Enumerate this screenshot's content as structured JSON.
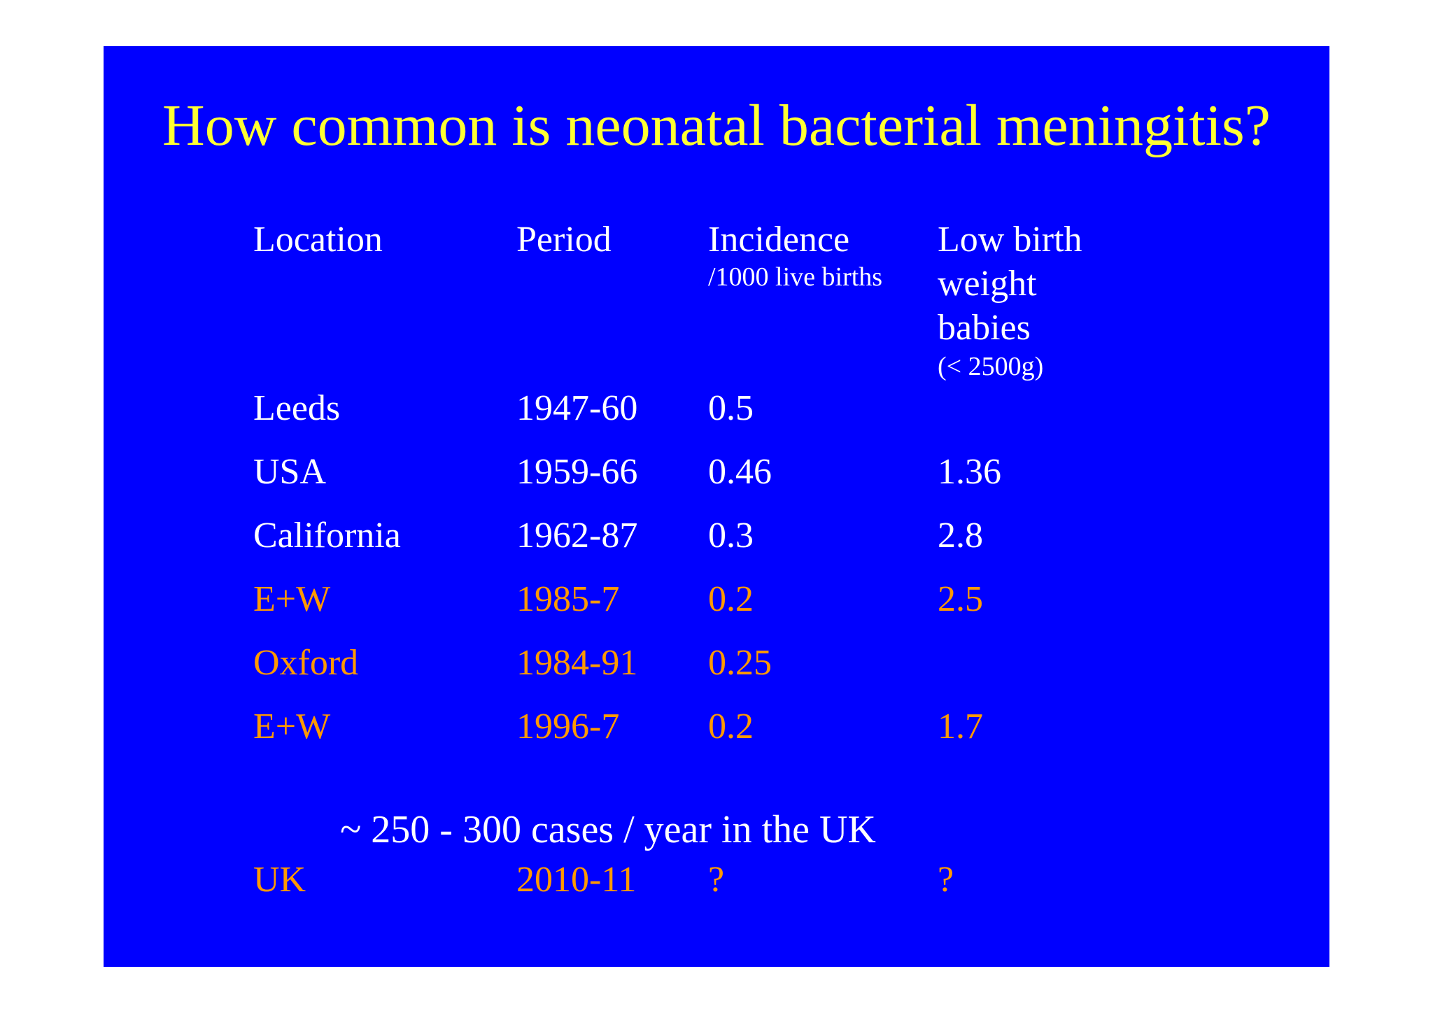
{
  "title": "How common is neonatal bacterial meningitis?",
  "colors": {
    "background": "#0000ff",
    "title": "#ffff33",
    "default_text": "#ffffff",
    "highlight_text": "#ff9900"
  },
  "table": {
    "headers": {
      "location": "Location",
      "period": "Period",
      "incidence": "Incidence",
      "incidence_unit": "/1000 live births",
      "lbw_line1": "Low birth",
      "lbw_line2": "weight",
      "lbw_line3": "babies",
      "lbw_unit": "(< 2500g)"
    },
    "rows": [
      {
        "location": "Leeds",
        "period": "1947-60",
        "incidence": "0.5",
        "lbw": "",
        "highlight": false
      },
      {
        "location": "USA",
        "period": "1959-66",
        "incidence": "0.46",
        "lbw": "1.36",
        "highlight": false
      },
      {
        "location": "California",
        "period": "1962-87",
        "incidence": "0.3",
        "lbw": "2.8",
        "highlight": false
      },
      {
        "location": "E+W",
        "period": "1985-7",
        "incidence": "0.2",
        "lbw": "2.5",
        "highlight": true
      },
      {
        "location": "Oxford",
        "period": "1984-91",
        "incidence": "0.25",
        "lbw": "",
        "highlight": true
      },
      {
        "location": "E+W",
        "period": "1996-7",
        "incidence": "0.2",
        "lbw": "1.7",
        "highlight": true
      }
    ],
    "note": "~ 250 - 300 cases / year in the UK",
    "final_row": {
      "location": "UK",
      "period": "2010-11",
      "incidence": "?",
      "lbw": "?",
      "highlight": true
    }
  }
}
